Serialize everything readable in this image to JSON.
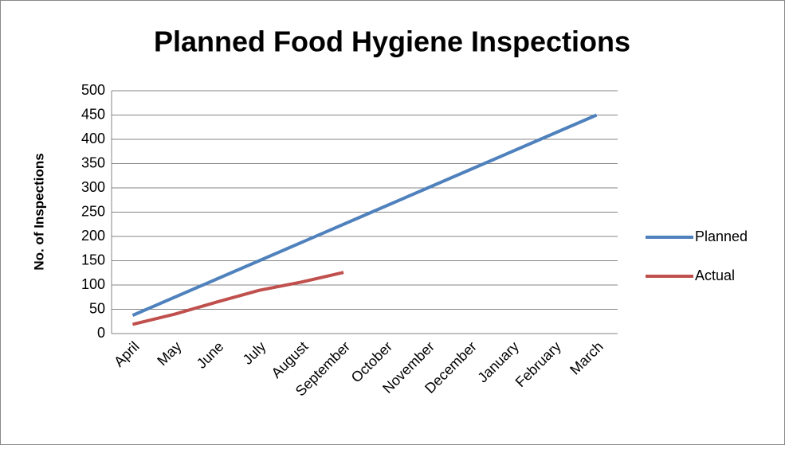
{
  "chart_data": {
    "type": "line",
    "title": "Planned Food Hygiene Inspections",
    "y_label": "No. of Inspections",
    "categories": [
      "April",
      "May",
      "June",
      "July",
      "August",
      "September",
      "October",
      "November",
      "December",
      "January",
      "February",
      "March"
    ],
    "series": [
      {
        "name": "Planned",
        "color": "#4f81bd",
        "values": [
          37.5,
          75,
          112.5,
          150,
          187.5,
          225,
          262.5,
          300,
          337.5,
          375,
          412.5,
          450
        ]
      },
      {
        "name": "Actual",
        "color": "#c0504d",
        "values": [
          19,
          40,
          65,
          89,
          106,
          126,
          null,
          null,
          null,
          null,
          null,
          null
        ]
      }
    ],
    "ylim": [
      0,
      500
    ],
    "yticks": [
      0,
      50,
      100,
      150,
      200,
      250,
      300,
      350,
      400,
      450,
      500
    ],
    "grid": true,
    "legend": "right"
  }
}
